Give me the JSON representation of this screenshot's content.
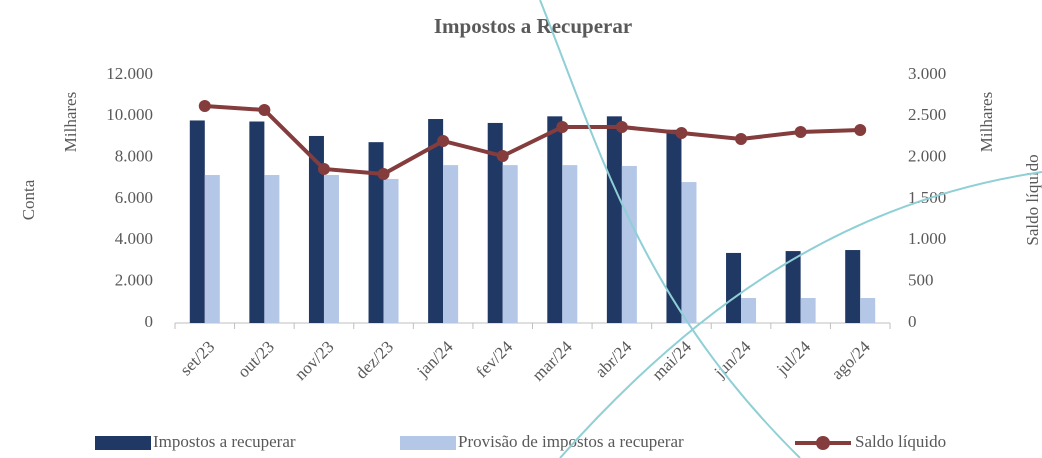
{
  "chart_data": {
    "type": "bar-line",
    "title": "Impostos a Recuperar",
    "ylabel": "Conta",
    "ylabel_unit": "Milhares",
    "y2label": "Saldo líquido",
    "y2label_unit": "Milhares",
    "categories": [
      "set/23",
      "out/23",
      "nov/23",
      "dez/23",
      "jan/24",
      "fev/24",
      "mar/24",
      "abr/24",
      "mai/24",
      "jun/24",
      "jul/24",
      "ago/24"
    ],
    "series": [
      {
        "name": "Impostos a recuperar",
        "type": "bar",
        "color": "#1f3864",
        "values": [
          9800,
          9750,
          9050,
          8750,
          9870,
          9680,
          10000,
          10000,
          9350,
          3390,
          3480,
          3530
        ]
      },
      {
        "name": "Provisão de impostos a recuperar",
        "type": "bar",
        "color": "#b4c7e7",
        "values": [
          7160,
          7160,
          7160,
          6970,
          7640,
          7640,
          7640,
          7600,
          6820,
          1210,
          1210,
          1210
        ]
      },
      {
        "name": "Saldo líquido",
        "type": "line",
        "axis": "y2",
        "color": "#843c3c",
        "values": [
          2625,
          2577,
          1863,
          1802,
          2202,
          2020,
          2371,
          2371,
          2298,
          2226,
          2310,
          2335
        ]
      }
    ],
    "ylim": [
      0,
      12000
    ],
    "yticks": [
      0,
      {
        "value": 2000,
        "label": "2.000"
      },
      {
        "value": 4000,
        "label": "4.000"
      },
      {
        "value": 6000,
        "label": "6.000"
      },
      {
        "value": 8000,
        "label": "8.000"
      },
      {
        "value": 10000,
        "label": "10.000"
      },
      {
        "value": 12000,
        "label": "12.000"
      }
    ],
    "y2lim": [
      0,
      3000
    ],
    "y2ticks": [
      0,
      500,
      {
        "value": 1000,
        "label": "1.000"
      },
      {
        "value": 1500,
        "label": "1.500"
      },
      {
        "value": 2000,
        "label": "2.000"
      },
      {
        "value": 2500,
        "label": "2.500"
      },
      {
        "value": 3000,
        "label": "3.000"
      }
    ],
    "legend": "bottom"
  }
}
